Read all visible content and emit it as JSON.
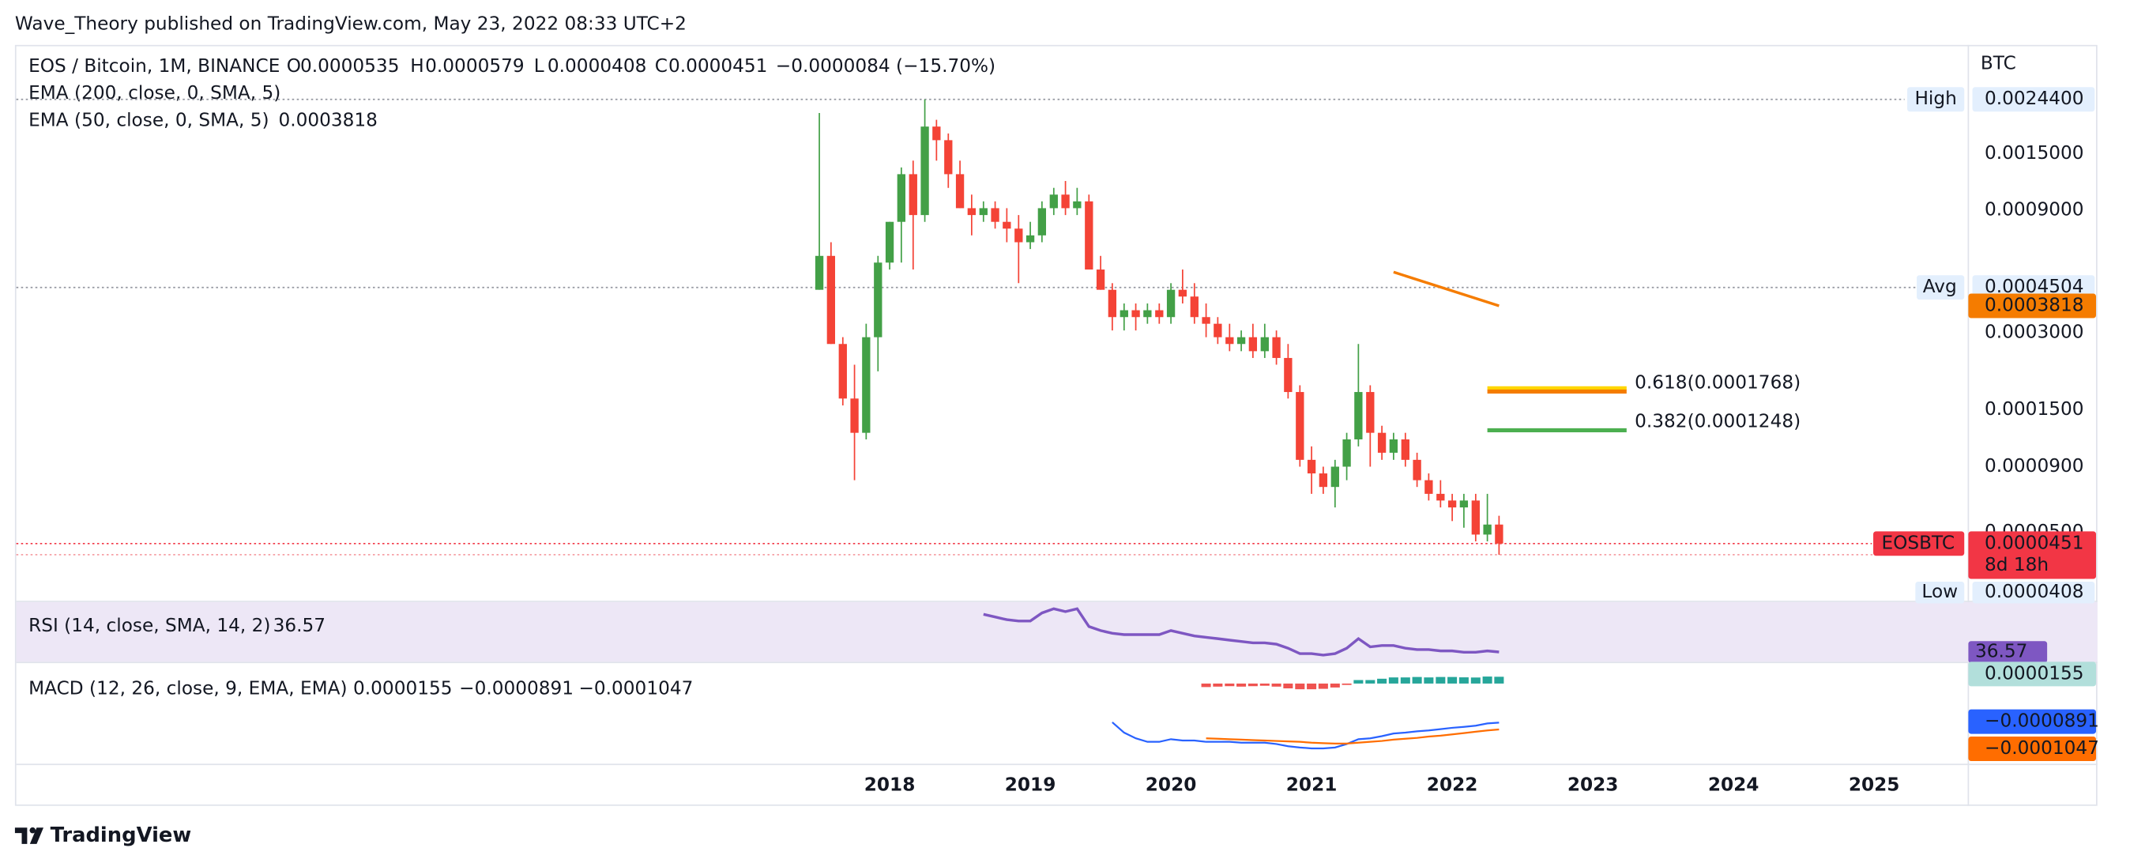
{
  "header": {
    "publisher": "Wave_Theory published on TradingView.com, May 23, 2022 08:33 UTC+2",
    "brand": "TradingView"
  },
  "chart_data": {
    "type": "candlestick",
    "title": "EOS / Bitcoin, 1M, BINANCE",
    "legend": {
      "o": "O",
      "h": "H",
      "l": "L",
      "c": "C",
      "change": "−0.0000084 (−15.70%)"
    },
    "unit": "BTC",
    "symbol": "EOSBTC",
    "countdown": "8d 18h",
    "log_scale": true,
    "grid": false,
    "up_color": "#43a047",
    "down_color": "#f44336",
    "xlim": [
      2011.79,
      2025.67
    ],
    "xticks": [
      2018,
      2019,
      2020,
      2021,
      2022,
      2023,
      2024,
      2025
    ],
    "ylim": [
      2.7e-05,
      0.00398
    ],
    "yticks": [
      {
        "value": 0.0015,
        "label": "0.0015000"
      },
      {
        "value": 0.0009,
        "label": "0.0009000"
      },
      {
        "value": 0.0003,
        "label": "0.0003000"
      },
      {
        "value": 0.00015,
        "label": "0.0001500"
      },
      {
        "value": 9e-05,
        "label": "0.0000900"
      },
      {
        "value": 5e-05,
        "label": "0.0000500"
      }
    ],
    "x": [
      2017.5,
      2017.583,
      2017.667,
      2017.75,
      2017.833,
      2017.917,
      2018,
      2018.083,
      2018.167,
      2018.25,
      2018.333,
      2018.417,
      2018.5,
      2018.583,
      2018.667,
      2018.75,
      2018.833,
      2018.917,
      2019,
      2019.083,
      2019.167,
      2019.25,
      2019.333,
      2019.417,
      2019.5,
      2019.583,
      2019.667,
      2019.75,
      2019.833,
      2019.917,
      2020,
      2020.083,
      2020.167,
      2020.25,
      2020.333,
      2020.417,
      2020.5,
      2020.583,
      2020.667,
      2020.75,
      2020.833,
      2020.917,
      2021,
      2021.083,
      2021.167,
      2021.25,
      2021.333,
      2021.417,
      2021.5,
      2021.583,
      2021.667,
      2021.75,
      2021.833,
      2021.917,
      2022,
      2022.083,
      2022.167,
      2022.25,
      2022.333
    ],
    "open": [
      0.000441,
      0.000598,
      0.000271,
      0.000166,
      0.000122,
      0.000288,
      0.000563,
      0.000812,
      0.001246,
      0.000863,
      0.001911,
      0.001691,
      0.001246,
      0.000918,
      0.000863,
      0.000918,
      0.000812,
      0.000764,
      0.000676,
      0.000719,
      0.000918,
      0.001037,
      0.000918,
      0.000976,
      0.000529,
      0.000441,
      0.000345,
      0.000367,
      0.000345,
      0.000367,
      0.000345,
      0.000441,
      0.000415,
      0.000345,
      0.000325,
      0.000288,
      0.000271,
      0.000288,
      0.000254,
      0.000288,
      0.000239,
      0.000176,
      9.57e-05,
      8.47e-05,
      7.5e-05,
      9e-05,
      0.000115,
      0.000176,
      0.000122,
      0.000102,
      0.000115,
      9.57e-05,
      7.97e-05,
      7.05e-05,
      6.64e-05,
      6.24e-05,
      6.64e-05,
      4.89e-05,
      5.35e-05
    ],
    "high": [
      0.002159,
      0.000676,
      0.000288,
      0.000225,
      0.000325,
      0.000598,
      0.000812,
      0.001324,
      0.001407,
      0.00244,
      0.002031,
      0.001797,
      0.001407,
      0.001037,
      0.000976,
      0.000976,
      0.000918,
      0.000863,
      0.000812,
      0.000976,
      0.001102,
      0.001172,
      0.001102,
      0.001037,
      0.000598,
      0.000468,
      0.00039,
      0.00039,
      0.00039,
      0.00039,
      0.000468,
      0.000529,
      0.000468,
      0.00039,
      0.000345,
      0.000325,
      0.000306,
      0.000325,
      0.000325,
      0.000306,
      0.000271,
      0.000187,
      0.000108,
      9e-05,
      9.57e-05,
      0.000122,
      0.000271,
      0.000187,
      0.00013,
      0.000122,
      0.000122,
      0.000102,
      8.47e-05,
      7.97e-05,
      7.05e-05,
      7.05e-05,
      7.05e-05,
      7.05e-05,
      5.79e-05
    ],
    "low": [
      0.000441,
      0.000271,
      0.000156,
      7.97e-05,
      0.000115,
      0.000212,
      0.000529,
      0.000563,
      0.000529,
      0.000812,
      0.001407,
      0.001102,
      0.000918,
      0.000719,
      0.000812,
      0.000764,
      0.000676,
      0.000468,
      0.000636,
      0.000676,
      0.000863,
      0.000863,
      0.000863,
      0.000529,
      0.000441,
      0.000306,
      0.000306,
      0.000306,
      0.000325,
      0.000325,
      0.000325,
      0.00039,
      0.000325,
      0.000288,
      0.000271,
      0.000254,
      0.000254,
      0.000239,
      0.000239,
      0.000225,
      0.000166,
      9e-05,
      7.05e-05,
      7.05e-05,
      6.24e-05,
      7.97e-05,
      0.000108,
      9e-05,
      9.57e-05,
      9.57e-05,
      9e-05,
      7.5e-05,
      6.64e-05,
      6.24e-05,
      5.52e-05,
      5.2e-05,
      4.6e-05,
      4.6e-05,
      4.08e-05
    ],
    "close": [
      0.000598,
      0.000271,
      0.000166,
      0.000122,
      0.000288,
      0.000563,
      0.000812,
      0.001246,
      0.000863,
      0.001911,
      0.001691,
      0.001246,
      0.000918,
      0.000863,
      0.000918,
      0.000812,
      0.000764,
      0.000676,
      0.000719,
      0.000918,
      0.001037,
      0.000918,
      0.000976,
      0.000529,
      0.000441,
      0.000345,
      0.000367,
      0.000345,
      0.000367,
      0.000345,
      0.000441,
      0.000415,
      0.000345,
      0.000325,
      0.000288,
      0.000271,
      0.000288,
      0.000254,
      0.000288,
      0.000239,
      0.000176,
      9.57e-05,
      8.47e-05,
      7.5e-05,
      9e-05,
      0.000115,
      0.000176,
      0.000122,
      0.000102,
      0.000115,
      9.57e-05,
      7.97e-05,
      7.05e-05,
      6.64e-05,
      6.24e-05,
      6.64e-05,
      4.89e-05,
      5.35e-05,
      4.51e-05
    ],
    "high_mark": {
      "label": "High",
      "value": 0.00244,
      "value_label": "0.0024400"
    },
    "low_mark": {
      "label": "Low",
      "value": 4.08e-05
    },
    "avg": {
      "label": "Avg",
      "value": 0.0004504
    },
    "ema200": {
      "name": "EMA (200, close, 0, SMA, 5)"
    },
    "ema50": {
      "name": "EMA (50, close, 0, SMA, 5)",
      "color": "#f57c00",
      "x": [
        2021.583,
        2022.333
      ],
      "values": [
        0.000517,
        0.0003818
      ]
    },
    "fib_x": [
      2022.25,
      2023.24
    ],
    "fib": [
      {
        "value": 0.000182,
        "color": "#ffd600"
      },
      {
        "value": 0.0001768,
        "label": "0.618(0.0001768)",
        "color": "#f57c00",
        "text_color": "#e6b800"
      },
      {
        "value": 0.0001248,
        "label": "0.382(0.0001248)",
        "color": "#4caf50",
        "text_color": "#4caf50"
      }
    ],
    "rsi": {
      "name": "RSI (14, close, SMA, 14, 2)",
      "color": "#7e57c2",
      "background": "#ede7f6",
      "ylim": [
        30,
        70
      ],
      "values": [
        null,
        null,
        null,
        null,
        null,
        null,
        null,
        null,
        null,
        null,
        null,
        null,
        null,
        null,
        61.8,
        60.0,
        58.2,
        57.3,
        57.3,
        62.7,
        65.5,
        63.6,
        65.5,
        53.6,
        50.9,
        49.1,
        48.2,
        48.2,
        48.2,
        48.2,
        50.9,
        49.1,
        47.3,
        46.4,
        45.5,
        44.5,
        43.6,
        42.7,
        42.7,
        41.8,
        39.1,
        35.5,
        35.5,
        34.5,
        35.5,
        39.1,
        45.5,
        40.0,
        40.9,
        40.9,
        39.1,
        38.2,
        38.2,
        37.3,
        37.3,
        36.4,
        36.4,
        37.3,
        36.57
      ]
    },
    "macd": {
      "name": "MACD (12, 26, close, 9, EMA, EMA)",
      "ylim": [
        -0.000183,
        4.65e-05
      ],
      "histogram": {
        "pos_color": "#26a69a",
        "neg_color": "#ef5350",
        "label_color": "#b2dfdb",
        "values": [
          null,
          null,
          null,
          null,
          null,
          null,
          null,
          null,
          null,
          null,
          null,
          null,
          null,
          null,
          null,
          null,
          null,
          null,
          null,
          null,
          null,
          null,
          null,
          null,
          null,
          null,
          null,
          null,
          null,
          null,
          null,
          null,
          null,
          -8e-06,
          -7e-06,
          -6e-06,
          -7e-06,
          -6e-06,
          -5e-06,
          -7e-06,
          -1.1e-05,
          -1.3e-05,
          -1.3e-05,
          -1.2e-05,
          -9e-06,
          -1e-06,
          8e-06,
          8e-06,
          1.1e-05,
          1.4e-05,
          1.4e-05,
          1.5e-05,
          1.4e-05,
          1.5e-05,
          1.5e-05,
          1.42e-05,
          1.38e-05,
          1.6e-05,
          1.55e-05
        ]
      },
      "macd": {
        "color": "#2962ff",
        "value_label": "−0.0000891",
        "values": [
          null,
          null,
          null,
          null,
          null,
          null,
          null,
          null,
          null,
          null,
          null,
          null,
          null,
          null,
          null,
          null,
          null,
          null,
          null,
          null,
          null,
          null,
          null,
          null,
          null,
          -8.84e-05,
          -0.000112,
          -0.000125,
          -0.000133,
          -0.000133,
          -0.000127,
          -0.00013,
          -0.00013,
          -0.000133,
          -0.000133,
          -0.000133,
          -0.000135,
          -0.000135,
          -0.000135,
          -0.000138,
          -0.000143,
          -0.000146,
          -0.000148,
          -0.000148,
          -0.000146,
          -0.000138,
          -0.000127,
          -0.000125,
          -0.00012,
          -0.000114,
          -0.000112,
          -0.000109,
          -0.000107,
          -0.000104,
          -0.000101,
          -9.88e-05,
          -9.62e-05,
          -9.1e-05,
          -8.91e-05
        ]
      },
      "signal": {
        "color": "#ff6d00",
        "value_label": "−0.0001047",
        "values": [
          null,
          null,
          null,
          null,
          null,
          null,
          null,
          null,
          null,
          null,
          null,
          null,
          null,
          null,
          null,
          null,
          null,
          null,
          null,
          null,
          null,
          null,
          null,
          null,
          null,
          null,
          null,
          null,
          null,
          null,
          null,
          null,
          null,
          -0.000125,
          -0.000126,
          -0.000127,
          -0.000128,
          -0.000129,
          -0.00013,
          -0.000131,
          -0.000132,
          -0.000133,
          -0.000135,
          -0.000136,
          -0.000137,
          -0.000137,
          -0.000135,
          -0.000133,
          -0.000131,
          -0.000128,
          -0.000126,
          -0.000124,
          -0.000121,
          -0.000119,
          -0.000116,
          -0.000113,
          -0.00011,
          -0.000107,
          -0.0001047
        ]
      }
    }
  }
}
